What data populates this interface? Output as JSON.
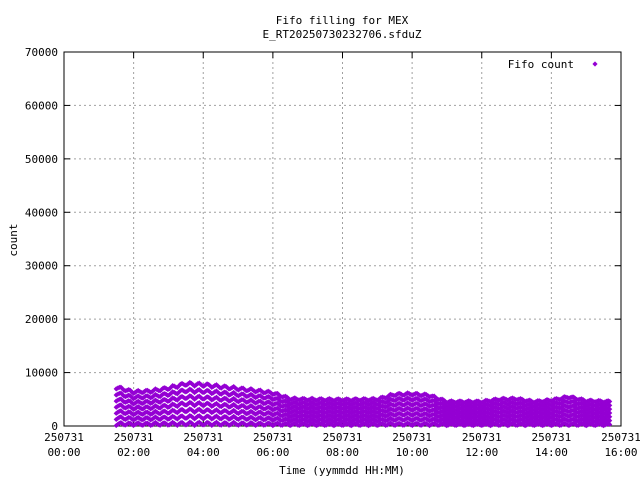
{
  "chart_data": {
    "type": "scatter",
    "title": "Fifo filling for MEX",
    "subtitle": "E_RT20250730232706.sfduZ",
    "xlabel": "Time (yymmdd HH:MM)",
    "ylabel": "count",
    "xlim": [
      0,
      16
    ],
    "ylim": [
      0,
      70000
    ],
    "grid": true,
    "legend_position": "top-right",
    "x_ticks": [
      {
        "value": 0,
        "date": "250731",
        "time": "00:00"
      },
      {
        "value": 2,
        "date": "250731",
        "time": "02:00"
      },
      {
        "value": 4,
        "date": "250731",
        "time": "04:00"
      },
      {
        "value": 6,
        "date": "250731",
        "time": "06:00"
      },
      {
        "value": 8,
        "date": "250731",
        "time": "08:00"
      },
      {
        "value": 10,
        "date": "250731",
        "time": "10:00"
      },
      {
        "value": 12,
        "date": "250731",
        "time": "12:00"
      },
      {
        "value": 14,
        "date": "250731",
        "time": "14:00"
      },
      {
        "value": 16,
        "date": "250731",
        "time": "16:00"
      }
    ],
    "y_ticks": [
      "0",
      "10000",
      "20000",
      "30000",
      "40000",
      "50000",
      "60000",
      "70000"
    ],
    "series": [
      {
        "name": "Fifo count",
        "color": "#9400d3",
        "marker": "diamond",
        "time_range": [
          1.5,
          15.7
        ],
        "envelope": [
          [
            1.5,
            8000
          ],
          [
            2.0,
            7000
          ],
          [
            2.5,
            7200
          ],
          [
            3.0,
            7800
          ],
          [
            3.5,
            8700
          ],
          [
            4.0,
            8500
          ],
          [
            4.5,
            8100
          ],
          [
            5.0,
            7700
          ],
          [
            5.5,
            7300
          ],
          [
            6.0,
            6800
          ],
          [
            6.5,
            5600
          ],
          [
            7.0,
            5500
          ],
          [
            8.0,
            5400
          ],
          [
            9.0,
            5500
          ],
          [
            9.5,
            6500
          ],
          [
            10.0,
            6600
          ],
          [
            10.5,
            6300
          ],
          [
            11.0,
            5000
          ],
          [
            12.0,
            5000
          ],
          [
            12.5,
            5500
          ],
          [
            13.0,
            5600
          ],
          [
            13.5,
            5000
          ],
          [
            14.0,
            5300
          ],
          [
            14.5,
            6000
          ],
          [
            15.0,
            5200
          ],
          [
            15.7,
            5000
          ]
        ],
        "bands": 7,
        "oscillation_period_hours": 0.25
      }
    ]
  }
}
